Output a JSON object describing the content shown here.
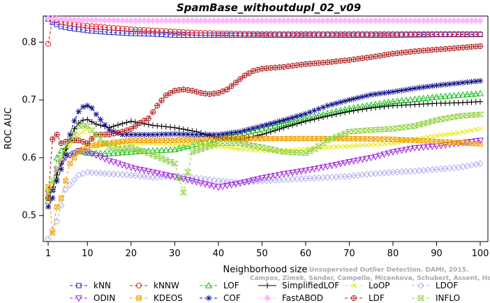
{
  "chart_data": {
    "type": "line",
    "title": "SpamBase_withoutdupl_02_v09",
    "xlabel": "Neighborhood size",
    "ylabel": "ROC AUC",
    "xlim": [
      1,
      100
    ],
    "ylim": [
      0.455,
      0.845
    ],
    "xticks": [
      1,
      10,
      20,
      30,
      40,
      50,
      60,
      70,
      80,
      90,
      100
    ],
    "yticks": [
      0.5,
      0.6,
      0.7,
      0.8
    ],
    "grid": false,
    "legend_position": "bottom",
    "watermark": [
      "Unsupervised Outlier Detection. DAMI, 2015.",
      "Campos, Zimek, Sander, Campello, Micenkova, Schubert, Assent, Houle"
    ],
    "series": [
      {
        "name": "kNN",
        "color": "#2020d0",
        "marker": "square",
        "dash": "4,3",
        "points": [
          [
            1,
            0.84
          ],
          [
            2,
            0.834
          ],
          [
            4,
            0.827
          ],
          [
            6,
            0.824
          ],
          [
            10,
            0.82
          ],
          [
            15,
            0.817
          ],
          [
            20,
            0.815
          ],
          [
            25,
            0.814
          ],
          [
            30,
            0.812
          ],
          [
            40,
            0.812
          ],
          [
            50,
            0.812
          ],
          [
            60,
            0.812
          ],
          [
            70,
            0.812
          ],
          [
            80,
            0.812
          ],
          [
            90,
            0.813
          ],
          [
            100,
            0.813
          ]
        ]
      },
      {
        "name": "kNNW",
        "color": "#e02020",
        "marker": "circle",
        "dash": "4,3",
        "points": [
          [
            1,
            0.797
          ],
          [
            2,
            0.84
          ],
          [
            4,
            0.835
          ],
          [
            6,
            0.832
          ],
          [
            10,
            0.828
          ],
          [
            15,
            0.825
          ],
          [
            20,
            0.822
          ],
          [
            25,
            0.82
          ],
          [
            30,
            0.818
          ],
          [
            35,
            0.816
          ],
          [
            40,
            0.815
          ],
          [
            50,
            0.814
          ],
          [
            60,
            0.814
          ],
          [
            70,
            0.814
          ],
          [
            80,
            0.814
          ],
          [
            90,
            0.814
          ],
          [
            100,
            0.814
          ]
        ]
      },
      {
        "name": "LOF",
        "color": "#10c010",
        "marker": "triangle-up",
        "dash": "4,3",
        "points": [
          [
            1,
            0.525
          ],
          [
            2,
            0.545
          ],
          [
            3,
            0.6
          ],
          [
            4,
            0.612
          ],
          [
            6,
            0.605
          ],
          [
            8,
            0.612
          ],
          [
            10,
            0.608
          ],
          [
            15,
            0.607
          ],
          [
            20,
            0.61
          ],
          [
            25,
            0.612
          ],
          [
            30,
            0.614
          ],
          [
            35,
            0.624
          ],
          [
            40,
            0.633
          ],
          [
            50,
            0.65
          ],
          [
            60,
            0.668
          ],
          [
            70,
            0.685
          ],
          [
            80,
            0.697
          ],
          [
            90,
            0.705
          ],
          [
            100,
            0.711
          ]
        ]
      },
      {
        "name": "SimplifiedLOF",
        "color": "#000000",
        "marker": "plus",
        "dash": "",
        "points": [
          [
            1,
            0.53
          ],
          [
            2,
            0.545
          ],
          [
            3,
            0.57
          ],
          [
            4,
            0.59
          ],
          [
            5,
            0.615
          ],
          [
            6,
            0.63
          ],
          [
            7,
            0.65
          ],
          [
            8,
            0.66
          ],
          [
            9,
            0.665
          ],
          [
            10,
            0.666
          ],
          [
            12,
            0.658
          ],
          [
            15,
            0.652
          ],
          [
            18,
            0.659
          ],
          [
            20,
            0.663
          ],
          [
            25,
            0.656
          ],
          [
            30,
            0.652
          ],
          [
            35,
            0.645
          ],
          [
            40,
            0.634
          ],
          [
            45,
            0.632
          ],
          [
            50,
            0.64
          ],
          [
            55,
            0.652
          ],
          [
            60,
            0.663
          ],
          [
            65,
            0.672
          ],
          [
            70,
            0.68
          ],
          [
            75,
            0.686
          ],
          [
            80,
            0.69
          ],
          [
            85,
            0.692
          ],
          [
            90,
            0.694
          ],
          [
            95,
            0.695
          ],
          [
            100,
            0.697
          ]
        ]
      },
      {
        "name": "LoOP",
        "color": "#e8e800",
        "marker": "x",
        "dash": "4,3",
        "points": [
          [
            1,
            0.53
          ],
          [
            3,
            0.58
          ],
          [
            5,
            0.61
          ],
          [
            8,
            0.64
          ],
          [
            10,
            0.65
          ],
          [
            12,
            0.618
          ],
          [
            15,
            0.625
          ],
          [
            20,
            0.625
          ],
          [
            25,
            0.625
          ],
          [
            30,
            0.623
          ],
          [
            35,
            0.625
          ],
          [
            40,
            0.62
          ],
          [
            45,
            0.615
          ],
          [
            50,
            0.612
          ],
          [
            55,
            0.612
          ],
          [
            60,
            0.615
          ],
          [
            65,
            0.618
          ],
          [
            70,
            0.62
          ],
          [
            75,
            0.622
          ],
          [
            80,
            0.625
          ],
          [
            85,
            0.632
          ],
          [
            90,
            0.638
          ],
          [
            95,
            0.643
          ],
          [
            100,
            0.65
          ]
        ]
      },
      {
        "name": "LDOF",
        "color": "#b0b0f0",
        "marker": "diamond",
        "dash": "4,3",
        "points": [
          [
            1,
            0.46
          ],
          [
            3,
            0.49
          ],
          [
            5,
            0.545
          ],
          [
            8,
            0.57
          ],
          [
            10,
            0.575
          ],
          [
            15,
            0.572
          ],
          [
            20,
            0.57
          ],
          [
            25,
            0.566
          ],
          [
            30,
            0.568
          ],
          [
            35,
            0.565
          ],
          [
            40,
            0.56
          ],
          [
            45,
            0.557
          ],
          [
            50,
            0.56
          ],
          [
            55,
            0.562
          ],
          [
            60,
            0.564
          ],
          [
            65,
            0.566
          ],
          [
            70,
            0.568
          ],
          [
            75,
            0.572
          ],
          [
            80,
            0.575
          ],
          [
            85,
            0.577
          ],
          [
            90,
            0.58
          ],
          [
            95,
            0.583
          ],
          [
            100,
            0.59
          ]
        ]
      },
      {
        "name": "ODIN",
        "color": "#a020e0",
        "marker": "triangle-down",
        "dash": "4,3",
        "points": [
          [
            1,
            0.54
          ],
          [
            2,
            0.545
          ],
          [
            3,
            0.58
          ],
          [
            5,
            0.6
          ],
          [
            8,
            0.612
          ],
          [
            10,
            0.61
          ],
          [
            15,
            0.595
          ],
          [
            18,
            0.588
          ],
          [
            20,
            0.583
          ],
          [
            25,
            0.575
          ],
          [
            30,
            0.567
          ],
          [
            35,
            0.558
          ],
          [
            40,
            0.549
          ],
          [
            45,
            0.556
          ],
          [
            50,
            0.565
          ],
          [
            55,
            0.572
          ],
          [
            60,
            0.578
          ],
          [
            65,
            0.585
          ],
          [
            70,
            0.593
          ],
          [
            75,
            0.6
          ],
          [
            80,
            0.61
          ],
          [
            85,
            0.617
          ],
          [
            90,
            0.62
          ],
          [
            95,
            0.625
          ],
          [
            100,
            0.63
          ]
        ]
      },
      {
        "name": "KDEOS",
        "color": "#f0a000",
        "marker": "square-x",
        "dash": "4,3",
        "points": [
          [
            1,
            0.55
          ],
          [
            2,
            0.47
          ],
          [
            3,
            0.515
          ],
          [
            4,
            0.53
          ],
          [
            5,
            0.56
          ],
          [
            6,
            0.59
          ],
          [
            8,
            0.61
          ],
          [
            10,
            0.62
          ],
          [
            15,
            0.625
          ],
          [
            20,
            0.63
          ],
          [
            25,
            0.63
          ],
          [
            30,
            0.63
          ],
          [
            35,
            0.632
          ],
          [
            40,
            0.633
          ],
          [
            50,
            0.633
          ],
          [
            60,
            0.633
          ],
          [
            70,
            0.633
          ],
          [
            80,
            0.632
          ],
          [
            90,
            0.628
          ],
          [
            100,
            0.624
          ]
        ]
      },
      {
        "name": "COF",
        "color": "#10108c",
        "marker": "star",
        "dash": "4,3",
        "points": [
          [
            1,
            0.515
          ],
          [
            2,
            0.53
          ],
          [
            3,
            0.56
          ],
          [
            4,
            0.58
          ],
          [
            5,
            0.605
          ],
          [
            6,
            0.64
          ],
          [
            7,
            0.664
          ],
          [
            8,
            0.68
          ],
          [
            9,
            0.688
          ],
          [
            10,
            0.69
          ],
          [
            11,
            0.686
          ],
          [
            12,
            0.675
          ],
          [
            15,
            0.648
          ],
          [
            18,
            0.64
          ],
          [
            20,
            0.64
          ],
          [
            25,
            0.64
          ],
          [
            30,
            0.641
          ],
          [
            35,
            0.64
          ],
          [
            40,
            0.64
          ],
          [
            45,
            0.645
          ],
          [
            50,
            0.655
          ],
          [
            55,
            0.665
          ],
          [
            60,
            0.676
          ],
          [
            65,
            0.69
          ],
          [
            70,
            0.7
          ],
          [
            75,
            0.709
          ],
          [
            80,
            0.714
          ],
          [
            85,
            0.72
          ],
          [
            90,
            0.725
          ],
          [
            95,
            0.729
          ],
          [
            100,
            0.733
          ]
        ]
      },
      {
        "name": "FastABOD",
        "color": "#ffb8ff",
        "marker": "diamond-filled",
        "dash": "4,3",
        "points": [
          [
            1,
            0.841
          ],
          [
            5,
            0.839
          ],
          [
            10,
            0.838
          ],
          [
            20,
            0.837
          ],
          [
            30,
            0.837
          ],
          [
            40,
            0.837
          ],
          [
            50,
            0.837
          ],
          [
            60,
            0.837
          ],
          [
            70,
            0.837
          ],
          [
            80,
            0.837
          ],
          [
            90,
            0.837
          ],
          [
            100,
            0.837
          ]
        ]
      },
      {
        "name": "LDF",
        "color": "#b02020",
        "marker": "circle-plus",
        "dash": "4,3",
        "points": [
          [
            1,
            0.53
          ],
          [
            2,
            0.632
          ],
          [
            3,
            0.64
          ],
          [
            4,
            0.625
          ],
          [
            6,
            0.63
          ],
          [
            8,
            0.63
          ],
          [
            10,
            0.625
          ],
          [
            12,
            0.64
          ],
          [
            15,
            0.64
          ],
          [
            18,
            0.645
          ],
          [
            20,
            0.65
          ],
          [
            22,
            0.66
          ],
          [
            24,
            0.668
          ],
          [
            26,
            0.69
          ],
          [
            28,
            0.708
          ],
          [
            30,
            0.716
          ],
          [
            32,
            0.718
          ],
          [
            34,
            0.716
          ],
          [
            36,
            0.712
          ],
          [
            38,
            0.71
          ],
          [
            40,
            0.712
          ],
          [
            42,
            0.718
          ],
          [
            44,
            0.73
          ],
          [
            46,
            0.742
          ],
          [
            48,
            0.75
          ],
          [
            50,
            0.754
          ],
          [
            55,
            0.757
          ],
          [
            60,
            0.762
          ],
          [
            65,
            0.765
          ],
          [
            70,
            0.769
          ],
          [
            75,
            0.774
          ],
          [
            80,
            0.78
          ],
          [
            85,
            0.784
          ],
          [
            90,
            0.787
          ],
          [
            95,
            0.79
          ],
          [
            100,
            0.793
          ]
        ]
      },
      {
        "name": "INFLO",
        "color": "#90d040",
        "marker": "hourglass",
        "dash": "4,3",
        "points": [
          [
            1,
            0.54
          ],
          [
            3,
            0.58
          ],
          [
            5,
            0.62
          ],
          [
            7,
            0.64
          ],
          [
            8,
            0.655
          ],
          [
            10,
            0.655
          ],
          [
            12,
            0.64
          ],
          [
            15,
            0.618
          ],
          [
            18,
            0.615
          ],
          [
            20,
            0.618
          ],
          [
            25,
            0.605
          ],
          [
            30,
            0.59
          ],
          [
            32,
            0.54
          ],
          [
            34,
            0.61
          ],
          [
            40,
            0.625
          ],
          [
            45,
            0.625
          ],
          [
            50,
            0.618
          ],
          [
            55,
            0.61
          ],
          [
            60,
            0.608
          ],
          [
            62,
            0.615
          ],
          [
            65,
            0.63
          ],
          [
            70,
            0.645
          ],
          [
            75,
            0.648
          ],
          [
            80,
            0.65
          ],
          [
            85,
            0.655
          ],
          [
            90,
            0.665
          ],
          [
            95,
            0.672
          ],
          [
            100,
            0.675
          ]
        ]
      }
    ]
  }
}
